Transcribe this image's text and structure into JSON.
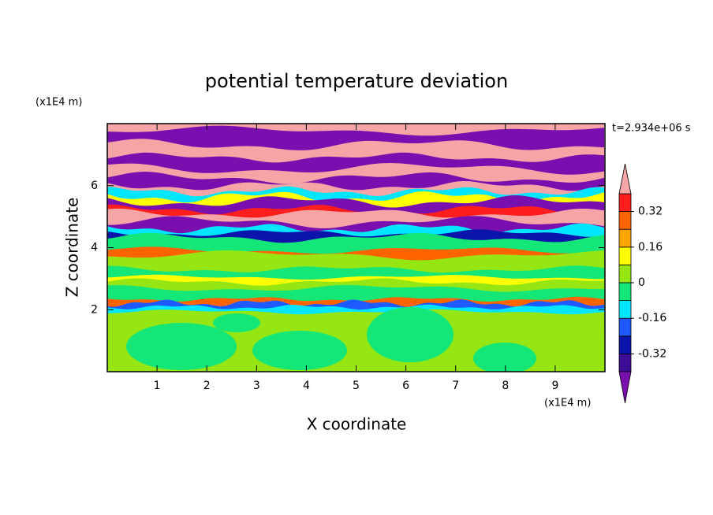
{
  "chart_data": {
    "type": "contour",
    "title": "potential temperature deviation",
    "xlabel": "X coordinate",
    "ylabel": "Z coordinate",
    "x_unit": "(x1E4 m)",
    "y_unit": "(x1E4 m)",
    "time_label": "t=2.934e+06 s",
    "xlim": [
      0,
      10
    ],
    "ylim": [
      0,
      8
    ],
    "xticks": [
      1,
      2,
      3,
      4,
      5,
      6,
      7,
      8,
      9
    ],
    "yticks": [
      2,
      4,
      6
    ],
    "levels": [
      -0.4,
      -0.32,
      -0.24,
      -0.16,
      -0.08,
      0,
      0.08,
      0.16,
      0.24,
      0.32,
      0.4
    ],
    "colors": [
      "#7a0fb0",
      "#3c0c96",
      "#0a14aa",
      "#1e5aff",
      "#00e6ff",
      "#14e678",
      "#96e614",
      "#ffff00",
      "#ffa500",
      "#ff6400",
      "#ff1e1e",
      "#f5a5a5"
    ],
    "colorbar_ticks": [
      0.32,
      0.16,
      0,
      -0.16,
      -0.32
    ]
  }
}
